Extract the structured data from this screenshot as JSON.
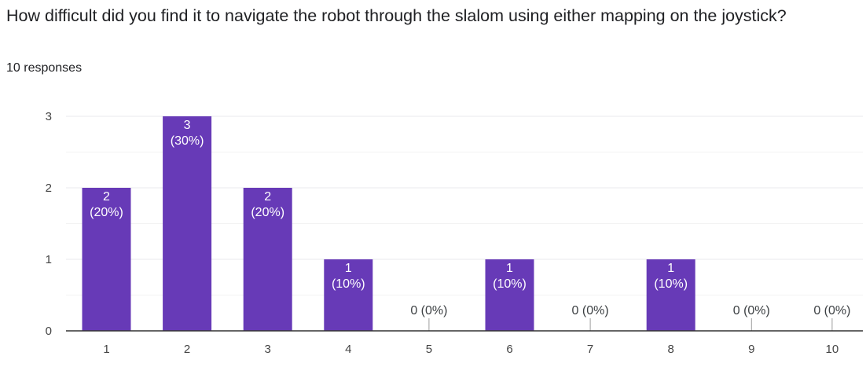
{
  "question": {
    "title": "How difficult did you find it to navigate the robot through the slalom using either mapping on the joystick?",
    "response_count": "10 responses"
  },
  "colors": {
    "bar": "#673ab7",
    "bar_label_inside": "#ffffff",
    "bar_label_outside": "#3c4043",
    "grid_major": "#e8eaed",
    "grid_minor": "#f3f3f3",
    "axis": "#333333",
    "tick_text": "#444444"
  },
  "chart_data": {
    "type": "bar",
    "title": "",
    "xlabel": "",
    "ylabel": "",
    "categories": [
      "1",
      "2",
      "3",
      "4",
      "5",
      "6",
      "7",
      "8",
      "9",
      "10"
    ],
    "values": [
      2,
      3,
      2,
      1,
      0,
      1,
      0,
      1,
      0,
      0
    ],
    "data_labels": [
      [
        "2",
        "(20%)"
      ],
      [
        "3",
        "(30%)"
      ],
      [
        "2",
        "(20%)"
      ],
      [
        "1",
        "(10%)"
      ],
      [
        "0 (0%)"
      ],
      [
        "1",
        "(10%)"
      ],
      [
        "0 (0%)"
      ],
      [
        "1",
        "(10%)"
      ],
      [
        "0 (0%)"
      ],
      [
        "0 (0%)"
      ]
    ],
    "ylim": [
      0,
      3
    ],
    "y_ticks": [
      "0",
      "1",
      "2",
      "3"
    ],
    "grid": true,
    "legend": "none"
  }
}
